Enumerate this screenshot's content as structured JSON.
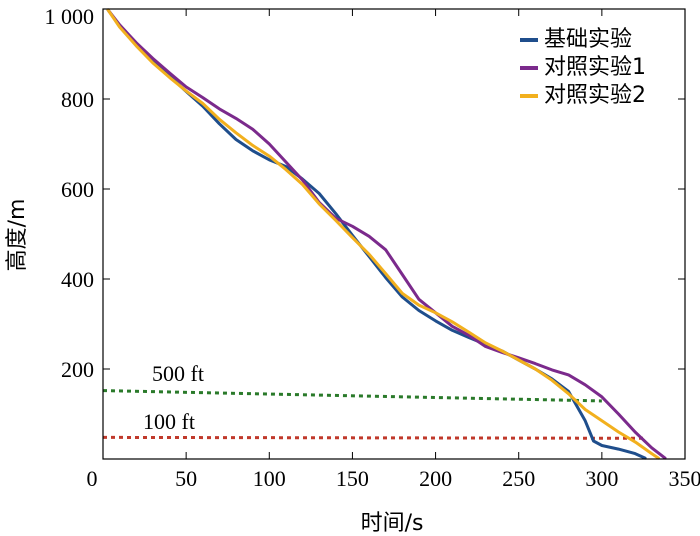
{
  "chart_data": {
    "type": "line",
    "title": "",
    "xlabel": "时间/s",
    "ylabel": "高度/m",
    "xlim": [
      0,
      350
    ],
    "ylim": [
      0,
      1000
    ],
    "xticks": [
      0,
      50,
      100,
      150,
      200,
      250,
      300,
      350
    ],
    "xtick_labels": [
      "0",
      "50",
      "100",
      "150",
      "200",
      "250",
      "300",
      "350"
    ],
    "yticks": [
      200,
      400,
      600,
      800,
      1000
    ],
    "ytick_labels": [
      "200",
      "400",
      "600",
      "800",
      "1 000"
    ],
    "grid": false,
    "legend_position": "top-right",
    "series": [
      {
        "name": "基础实验",
        "color": "#1f4e8c",
        "x": [
          3,
          10,
          20,
          30,
          40,
          50,
          60,
          70,
          80,
          90,
          100,
          110,
          120,
          130,
          140,
          150,
          160,
          170,
          180,
          190,
          200,
          210,
          220,
          230,
          240,
          250,
          260,
          270,
          280,
          290,
          295,
          300,
          310,
          320,
          326
        ],
        "y": [
          998,
          963,
          920,
          884,
          851,
          817,
          784,
          745,
          710,
          685,
          665,
          650,
          622,
          590,
          545,
          497,
          450,
          403,
          360,
          330,
          307,
          286,
          270,
          255,
          240,
          220,
          200,
          178,
          150,
          85,
          40,
          30,
          22,
          12,
          2
        ]
      },
      {
        "name": "对照实验1",
        "color": "#7b2a8c",
        "x": [
          3,
          10,
          20,
          30,
          40,
          50,
          60,
          70,
          80,
          90,
          100,
          110,
          120,
          130,
          140,
          150,
          160,
          170,
          180,
          190,
          200,
          210,
          220,
          230,
          240,
          250,
          260,
          270,
          280,
          290,
          300,
          310,
          320,
          330,
          338
        ],
        "y": [
          998,
          965,
          925,
          890,
          858,
          827,
          803,
          778,
          757,
          733,
          700,
          660,
          620,
          570,
          535,
          517,
          495,
          465,
          410,
          355,
          325,
          295,
          275,
          250,
          237,
          225,
          212,
          198,
          187,
          165,
          138,
          100,
          60,
          25,
          2
        ]
      },
      {
        "name": "对照实验2",
        "color": "#f2b01e",
        "x": [
          3,
          10,
          20,
          30,
          40,
          50,
          60,
          70,
          80,
          90,
          100,
          110,
          120,
          130,
          140,
          150,
          160,
          170,
          180,
          190,
          200,
          210,
          220,
          230,
          240,
          250,
          260,
          270,
          280,
          290,
          300,
          310,
          320,
          330,
          334
        ],
        "y": [
          998,
          960,
          918,
          880,
          848,
          818,
          790,
          755,
          725,
          697,
          673,
          643,
          610,
          567,
          530,
          492,
          455,
          412,
          368,
          342,
          325,
          305,
          282,
          258,
          240,
          220,
          200,
          175,
          145,
          110,
          85,
          60,
          38,
          12,
          2
        ]
      }
    ],
    "reference_lines": [
      {
        "name": "500 ft",
        "label": "500 ft",
        "color": "#2a7a2a",
        "style": "dotted",
        "x": [
          0,
          300
        ],
        "y": [
          152,
          129
        ]
      },
      {
        "name": "100 ft",
        "label": "100 ft",
        "color": "#c0392b",
        "style": "dotted",
        "x": [
          0,
          326
        ],
        "y": [
          48,
          46
        ]
      }
    ]
  }
}
